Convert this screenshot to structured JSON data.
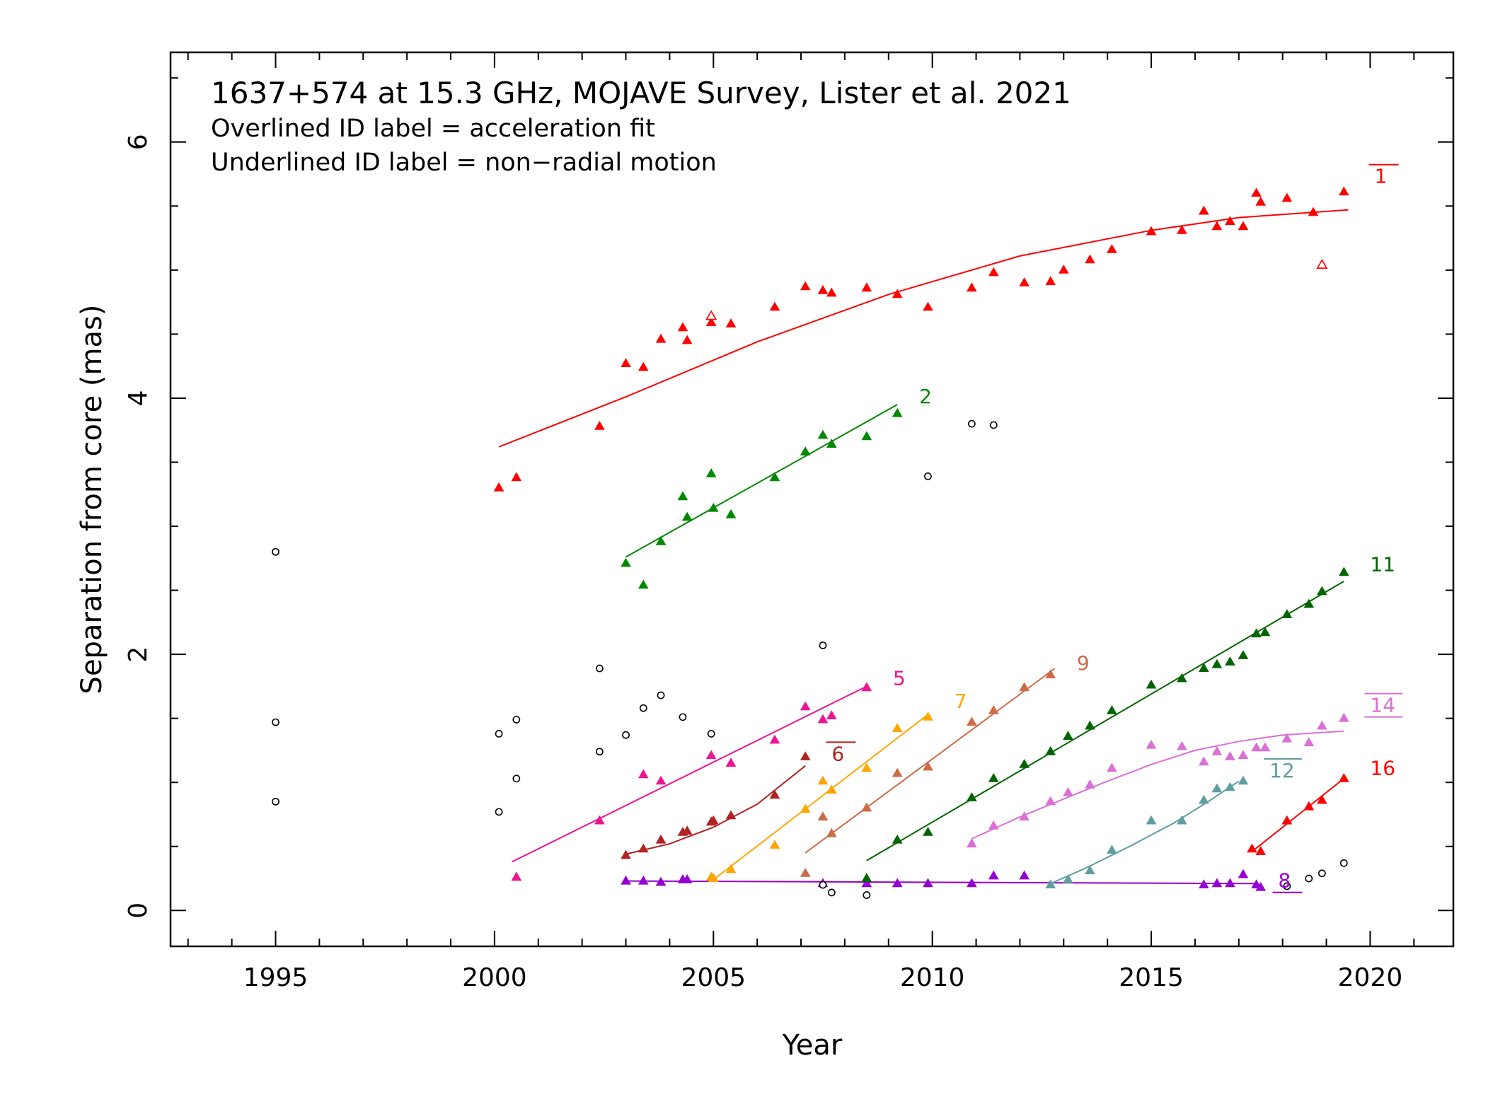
{
  "chart_data": {
    "type": "scatter",
    "title": "1637+574 at 15.3 GHz, MOJAVE Survey, Lister et al. 2021",
    "subtitle_lines": [
      "Overlined ID label = acceleration fit",
      "Underlined ID label = non−radial motion"
    ],
    "xlabel": "Year",
    "ylabel": "Separation from core (mas)",
    "xlim": [
      1992.6,
      2021.9
    ],
    "ylim": [
      -0.28,
      6.7
    ],
    "xticks_major": [
      1995,
      2000,
      2005,
      2010,
      2015,
      2020
    ],
    "xtick_labels": [
      "1995",
      "2000",
      "2005",
      "2010",
      "2015",
      "2020"
    ],
    "yticks_major": [
      0,
      2,
      4,
      6
    ],
    "ytick_labels": [
      "0",
      "2",
      "4",
      "6"
    ],
    "grid": false,
    "series": [
      {
        "name": "1",
        "color": "#ff0000",
        "decoration": "overline",
        "fit": {
          "kind": "curve",
          "points": [
            [
              2000.1,
              3.62
            ],
            [
              2003,
              4.01
            ],
            [
              2006,
              4.44
            ],
            [
              2009,
              4.81
            ],
            [
              2012,
              5.11
            ],
            [
              2015,
              5.31
            ],
            [
              2017,
              5.41
            ],
            [
              2019.5,
              5.47
            ]
          ]
        },
        "points": [
          [
            2000.1,
            3.3
          ],
          [
            2000.5,
            3.38
          ],
          [
            2002.4,
            3.78
          ],
          [
            2003.0,
            4.27
          ],
          [
            2003.4,
            4.24
          ],
          [
            2003.8,
            4.46
          ],
          [
            2004.3,
            4.55
          ],
          [
            2004.4,
            4.45
          ],
          [
            2004.95,
            4.59
          ],
          [
            2005.4,
            4.58
          ],
          [
            2006.4,
            4.71
          ],
          [
            2007.1,
            4.87
          ],
          [
            2007.5,
            4.84
          ],
          [
            2007.7,
            4.82
          ],
          [
            2008.5,
            4.86
          ],
          [
            2009.2,
            4.81
          ],
          [
            2009.9,
            4.71
          ],
          [
            2010.9,
            4.86
          ],
          [
            2011.4,
            4.98
          ],
          [
            2012.1,
            4.9
          ],
          [
            2012.7,
            4.91
          ],
          [
            2013.0,
            5.0
          ],
          [
            2013.6,
            5.08
          ],
          [
            2014.1,
            5.16
          ],
          [
            2015.0,
            5.3
          ],
          [
            2015.7,
            5.31
          ],
          [
            2016.2,
            5.46
          ],
          [
            2016.5,
            5.34
          ],
          [
            2016.8,
            5.38
          ],
          [
            2017.1,
            5.34
          ],
          [
            2017.4,
            5.6
          ],
          [
            2017.5,
            5.53
          ],
          [
            2018.1,
            5.56
          ],
          [
            2018.7,
            5.45
          ],
          [
            2019.4,
            5.61
          ]
        ],
        "open_points": [
          [
            2004.95,
            4.64
          ],
          [
            2018.9,
            5.04
          ]
        ]
      },
      {
        "name": "2",
        "color": "#008800",
        "decoration": "none",
        "fit": {
          "kind": "line",
          "points": [
            [
              2003.0,
              2.76
            ],
            [
              2009.2,
              3.95
            ]
          ]
        },
        "points": [
          [
            2003.0,
            2.71
          ],
          [
            2003.4,
            2.54
          ],
          [
            2003.8,
            2.88
          ],
          [
            2004.3,
            3.23
          ],
          [
            2004.4,
            3.07
          ],
          [
            2004.95,
            3.41
          ],
          [
            2005.0,
            3.14
          ],
          [
            2005.4,
            3.09
          ],
          [
            2006.4,
            3.38
          ],
          [
            2007.1,
            3.58
          ],
          [
            2007.5,
            3.71
          ],
          [
            2007.7,
            3.64
          ],
          [
            2008.5,
            3.7
          ],
          [
            2009.2,
            3.88
          ]
        ],
        "open_points": []
      },
      {
        "name": "5",
        "color": "#ee1493",
        "decoration": "none",
        "fit": {
          "kind": "line",
          "points": [
            [
              2000.4,
              0.38
            ],
            [
              2008.5,
              1.75
            ]
          ]
        },
        "points": [
          [
            2000.5,
            0.26
          ],
          [
            2002.4,
            0.7
          ],
          [
            2003.4,
            1.06
          ],
          [
            2003.8,
            1.01
          ],
          [
            2004.95,
            1.21
          ],
          [
            2005.4,
            1.15
          ],
          [
            2006.4,
            1.33
          ],
          [
            2007.1,
            1.59
          ],
          [
            2007.5,
            1.49
          ],
          [
            2007.7,
            1.52
          ],
          [
            2008.5,
            1.74
          ]
        ],
        "open_points": []
      },
      {
        "name": "6",
        "color": "#b22222",
        "decoration": "overline",
        "fit": {
          "kind": "curve",
          "points": [
            [
              2003.0,
              0.44
            ],
            [
              2004.0,
              0.52
            ],
            [
              2005.0,
              0.65
            ],
            [
              2006.0,
              0.83
            ],
            [
              2007.1,
              1.13
            ]
          ]
        },
        "points": [
          [
            2003.0,
            0.43
          ],
          [
            2003.4,
            0.48
          ],
          [
            2003.8,
            0.55
          ],
          [
            2004.3,
            0.61
          ],
          [
            2004.4,
            0.62
          ],
          [
            2004.95,
            0.69
          ],
          [
            2005.0,
            0.7
          ],
          [
            2005.4,
            0.74
          ],
          [
            2006.4,
            0.9
          ],
          [
            2007.1,
            1.2
          ]
        ],
        "open_points": []
      },
      {
        "name": "7",
        "color": "#ffa500",
        "decoration": "none",
        "fit": {
          "kind": "line",
          "points": [
            [
              2005.0,
              0.24
            ],
            [
              2009.9,
              1.53
            ]
          ]
        },
        "points": [
          [
            2004.95,
            0.26
          ],
          [
            2005.0,
            0.25
          ],
          [
            2005.4,
            0.32
          ],
          [
            2006.4,
            0.51
          ],
          [
            2007.1,
            0.79
          ],
          [
            2007.5,
            1.01
          ],
          [
            2007.7,
            0.94
          ],
          [
            2008.5,
            1.11
          ],
          [
            2009.2,
            1.42
          ],
          [
            2009.9,
            1.51
          ]
        ],
        "open_points": []
      },
      {
        "name": "8",
        "color": "#9400d3",
        "decoration": "underline",
        "fit": {
          "kind": "line",
          "points": [
            [
              2003.0,
              0.23
            ],
            [
              2017.4,
              0.21
            ]
          ]
        },
        "points": [
          [
            2003.0,
            0.23
          ],
          [
            2003.4,
            0.23
          ],
          [
            2003.8,
            0.22
          ],
          [
            2004.3,
            0.24
          ],
          [
            2004.4,
            0.24
          ],
          [
            2007.5,
            0.21
          ],
          [
            2008.5,
            0.21
          ],
          [
            2009.2,
            0.21
          ],
          [
            2009.9,
            0.21
          ],
          [
            2010.9,
            0.21
          ],
          [
            2011.4,
            0.27
          ],
          [
            2012.1,
            0.27
          ],
          [
            2016.2,
            0.2
          ],
          [
            2016.5,
            0.21
          ],
          [
            2016.8,
            0.21
          ],
          [
            2017.1,
            0.28
          ],
          [
            2017.4,
            0.2
          ],
          [
            2017.5,
            0.18
          ]
        ],
        "open_points": []
      },
      {
        "name": "9",
        "color": "#cd6a47",
        "decoration": "none",
        "fit": {
          "kind": "line",
          "points": [
            [
              2007.1,
              0.45
            ],
            [
              2012.8,
              1.89
            ]
          ]
        },
        "points": [
          [
            2007.1,
            0.29
          ],
          [
            2007.5,
            0.73
          ],
          [
            2007.7,
            0.6
          ],
          [
            2008.5,
            0.8
          ],
          [
            2009.2,
            1.07
          ],
          [
            2009.9,
            1.12
          ],
          [
            2010.9,
            1.47
          ],
          [
            2011.4,
            1.56
          ],
          [
            2012.1,
            1.74
          ],
          [
            2012.7,
            1.84
          ]
        ],
        "open_points": []
      },
      {
        "name": "11",
        "color": "#006400",
        "decoration": "none",
        "fit": {
          "kind": "line",
          "points": [
            [
              2008.5,
              0.39
            ],
            [
              2019.4,
              2.57
            ]
          ]
        },
        "points": [
          [
            2008.5,
            0.25
          ],
          [
            2009.2,
            0.55
          ],
          [
            2009.9,
            0.61
          ],
          [
            2010.9,
            0.88
          ],
          [
            2011.4,
            1.03
          ],
          [
            2012.1,
            1.14
          ],
          [
            2012.7,
            1.24
          ],
          [
            2013.1,
            1.36
          ],
          [
            2013.6,
            1.44
          ],
          [
            2014.1,
            1.56
          ],
          [
            2015.0,
            1.76
          ],
          [
            2015.7,
            1.81
          ],
          [
            2016.2,
            1.89
          ],
          [
            2016.5,
            1.92
          ],
          [
            2016.8,
            1.94
          ],
          [
            2017.1,
            1.99
          ],
          [
            2017.4,
            2.16
          ],
          [
            2017.6,
            2.17
          ],
          [
            2018.1,
            2.31
          ],
          [
            2018.6,
            2.39
          ],
          [
            2018.9,
            2.49
          ],
          [
            2019.4,
            2.64
          ]
        ],
        "open_points": []
      },
      {
        "name": "12",
        "color": "#5f9ea0",
        "decoration": "overline",
        "fit": {
          "kind": "curve",
          "points": [
            [
              2012.7,
              0.21
            ],
            [
              2013.5,
              0.33
            ],
            [
              2014.5,
              0.5
            ],
            [
              2015.5,
              0.68
            ],
            [
              2016.3,
              0.85
            ],
            [
              2017.0,
              1.01
            ]
          ]
        },
        "points": [
          [
            2012.7,
            0.2
          ],
          [
            2013.1,
            0.24
          ],
          [
            2013.6,
            0.31
          ],
          [
            2014.1,
            0.47
          ],
          [
            2015.0,
            0.7
          ],
          [
            2015.7,
            0.7
          ],
          [
            2016.2,
            0.86
          ],
          [
            2016.5,
            0.95
          ],
          [
            2016.8,
            0.96
          ],
          [
            2017.1,
            1.01
          ]
        ],
        "open_points": []
      },
      {
        "name": "14",
        "color": "#da70d6",
        "decoration": "over-under",
        "fit": {
          "kind": "curve",
          "points": [
            [
              2010.9,
              0.56
            ],
            [
              2012.0,
              0.73
            ],
            [
              2013.0,
              0.87
            ],
            [
              2014.0,
              1.01
            ],
            [
              2015.0,
              1.14
            ],
            [
              2016.0,
              1.25
            ],
            [
              2017.0,
              1.32
            ],
            [
              2018.0,
              1.37
            ],
            [
              2019.4,
              1.4
            ]
          ]
        },
        "points": [
          [
            2010.9,
            0.52
          ],
          [
            2011.4,
            0.66
          ],
          [
            2012.1,
            0.73
          ],
          [
            2012.7,
            0.85
          ],
          [
            2013.1,
            0.92
          ],
          [
            2013.6,
            0.98
          ],
          [
            2014.1,
            1.11
          ],
          [
            2015.0,
            1.29
          ],
          [
            2015.7,
            1.28
          ],
          [
            2016.2,
            1.16
          ],
          [
            2016.5,
            1.24
          ],
          [
            2016.8,
            1.2
          ],
          [
            2017.1,
            1.21
          ],
          [
            2017.4,
            1.27
          ],
          [
            2017.6,
            1.27
          ],
          [
            2018.1,
            1.34
          ],
          [
            2018.6,
            1.31
          ],
          [
            2018.9,
            1.44
          ],
          [
            2019.4,
            1.5
          ]
        ],
        "open_points": []
      },
      {
        "name": "16",
        "color": "#ff0000",
        "decoration": "none",
        "fit": {
          "kind": "line",
          "points": [
            [
              2017.3,
              0.46
            ],
            [
              2019.4,
              1.03
            ]
          ]
        },
        "points": [
          [
            2017.3,
            0.48
          ],
          [
            2017.5,
            0.46
          ],
          [
            2018.1,
            0.7
          ],
          [
            2018.6,
            0.81
          ],
          [
            2018.9,
            0.86
          ],
          [
            2019.4,
            1.03
          ]
        ],
        "open_points": []
      }
    ],
    "unassociated_open_circles": [
      [
        1995.0,
        2.8
      ],
      [
        1995.0,
        1.47
      ],
      [
        1995.0,
        0.85
      ],
      [
        2000.1,
        1.38
      ],
      [
        2000.5,
        1.49
      ],
      [
        2000.5,
        1.03
      ],
      [
        2000.1,
        0.77
      ],
      [
        2002.4,
        1.89
      ],
      [
        2002.4,
        1.24
      ],
      [
        2003.0,
        1.37
      ],
      [
        2003.4,
        1.58
      ],
      [
        2003.8,
        1.68
      ],
      [
        2004.3,
        1.51
      ],
      [
        2004.95,
        1.38
      ],
      [
        2007.5,
        2.07
      ],
      [
        2007.5,
        0.2
      ],
      [
        2007.7,
        0.14
      ],
      [
        2008.5,
        0.12
      ],
      [
        2009.9,
        3.39
      ],
      [
        2010.9,
        3.8
      ],
      [
        2011.4,
        3.79
      ],
      [
        2018.1,
        0.19
      ],
      [
        2018.6,
        0.25
      ],
      [
        2018.9,
        0.29
      ],
      [
        2019.4,
        0.37
      ]
    ],
    "labels": [
      {
        "series": "1",
        "text": "1",
        "at": [
          2020.1,
          5.68
        ]
      },
      {
        "series": "2",
        "text": "2",
        "at": [
          2009.7,
          3.96
        ]
      },
      {
        "series": "5",
        "text": "5",
        "at": [
          2009.1,
          1.76
        ]
      },
      {
        "series": "6",
        "text": "6",
        "at": [
          2007.7,
          1.17
        ]
      },
      {
        "series": "7",
        "text": "7",
        "at": [
          2010.5,
          1.58
        ]
      },
      {
        "series": "8",
        "text": "8",
        "at": [
          2017.9,
          0.18
        ]
      },
      {
        "series": "9",
        "text": "9",
        "at": [
          2013.3,
          1.88
        ]
      },
      {
        "series": "11",
        "text": "11",
        "at": [
          2020.0,
          2.65
        ]
      },
      {
        "series": "12",
        "text": "12",
        "at": [
          2017.7,
          1.04
        ]
      },
      {
        "series": "14",
        "text": "14",
        "at": [
          2020.0,
          1.55
        ]
      },
      {
        "series": "16",
        "text": "16",
        "at": [
          2020.0,
          1.06
        ]
      }
    ]
  }
}
